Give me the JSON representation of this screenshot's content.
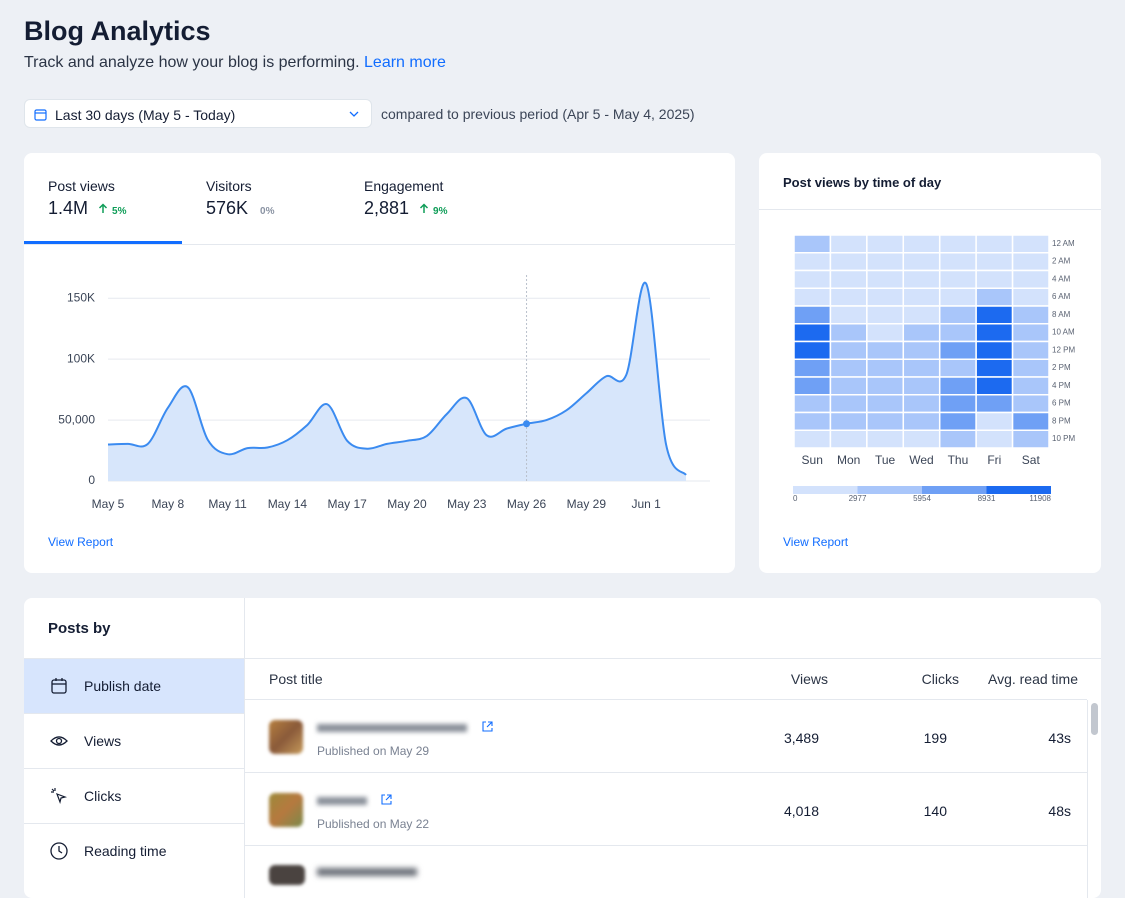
{
  "header": {
    "title": "Blog Analytics",
    "subtitle": "Track and analyze how your blog is performing.",
    "link": "Learn more"
  },
  "filter": {
    "range": "Last 30 days (May 5 - Today)",
    "comparison": "compared to previous period (Apr 5 - May 4, 2025)"
  },
  "metrics": [
    {
      "label": "Post views",
      "value": "1.4M",
      "change": "5%",
      "trend": "up"
    },
    {
      "label": "Visitors",
      "value": "576K",
      "change": "0%",
      "trend": "flat"
    },
    {
      "label": "Engagement",
      "value": "2,881",
      "change": "9%",
      "trend": "up"
    }
  ],
  "chart_data": [
    {
      "type": "area",
      "link": "View Report",
      "categories": [
        "May 5",
        null,
        null,
        "May 8",
        null,
        null,
        "May 11",
        null,
        null,
        "May 14",
        null,
        null,
        "May 17",
        null,
        null,
        "May 20",
        null,
        null,
        "May 23",
        null,
        null,
        "May 26",
        null,
        null,
        "May 29",
        null,
        null,
        "Jun 1",
        null,
        null
      ],
      "values": [
        30000,
        30500,
        30500,
        60000,
        77000,
        34000,
        22000,
        27000,
        27500,
        33500,
        46000,
        63000,
        33000,
        26500,
        30500,
        33000,
        37000,
        55000,
        68000,
        37500,
        43000,
        47000,
        50000,
        58000,
        72000,
        86000,
        87000,
        162000,
        30000,
        5000
      ],
      "color": "#3b8bf0",
      "fill": "#d7e6fb",
      "ylim": [
        0,
        165000
      ],
      "yticks": [
        0,
        {
          "value": 50000,
          "label": "50,000"
        },
        {
          "value": 100000,
          "label": "100K"
        },
        {
          "value": 150000,
          "label": "150K"
        }
      ],
      "grid": true
    },
    {
      "type": "heatmap",
      "title": "Post views by time of day",
      "link": "View Report",
      "x": [
        "Sun",
        "Mon",
        "Tue",
        "Wed",
        "Thu",
        "Fri",
        "Sat"
      ],
      "y": [
        "12 AM",
        "2 AM",
        "4 AM",
        "6 AM",
        "8 AM",
        "10 AM",
        "12 PM",
        "2 PM",
        "4 PM",
        "6 PM",
        "8 PM",
        "10 PM"
      ],
      "values": [
        [
          4200,
          1800,
          1500,
          1600,
          1700,
          1900,
          2100
        ],
        [
          1400,
          1100,
          1000,
          1200,
          1300,
          1500,
          1600
        ],
        [
          900,
          800,
          900,
          1000,
          1100,
          1200,
          1300
        ],
        [
          2200,
          1900,
          2000,
          2300,
          2400,
          4800,
          2600
        ],
        [
          7600,
          2800,
          2500,
          2700,
          5200,
          10200,
          4600
        ],
        [
          10400,
          4100,
          2900,
          4300,
          5100,
          11300,
          5000
        ],
        [
          10900,
          4600,
          3800,
          4500,
          7400,
          11700,
          5400
        ],
        [
          8100,
          4400,
          4000,
          4200,
          5500,
          11200,
          4800
        ],
        [
          7900,
          4300,
          3900,
          4100,
          7200,
          10800,
          4700
        ],
        [
          5600,
          4000,
          3700,
          3800,
          7600,
          8200,
          4500
        ],
        [
          5200,
          3900,
          3600,
          3700,
          7300,
          2600,
          7100
        ],
        [
          2400,
          2200,
          2000,
          2100,
          4200,
          2300,
          4400
        ]
      ],
      "bins": [
        0,
        2977,
        5954,
        8931,
        11908
      ],
      "colors": [
        "#d3e2fc",
        "#a9c6fa",
        "#6fa0f5",
        "#1c6af0"
      ]
    }
  ],
  "posts": {
    "title": "Posts by",
    "sort_options": [
      "Publish date",
      "Views",
      "Clicks",
      "Reading time"
    ],
    "selected": 0,
    "columns": [
      "Post title",
      "Views",
      "Clicks",
      "Avg. read time"
    ],
    "rows": [
      {
        "published": "Published on May 29",
        "views": "3,489",
        "clicks": "199",
        "read_time": "43s"
      },
      {
        "published": "Published on May 22",
        "views": "4,018",
        "clicks": "140",
        "read_time": "48s"
      }
    ]
  }
}
